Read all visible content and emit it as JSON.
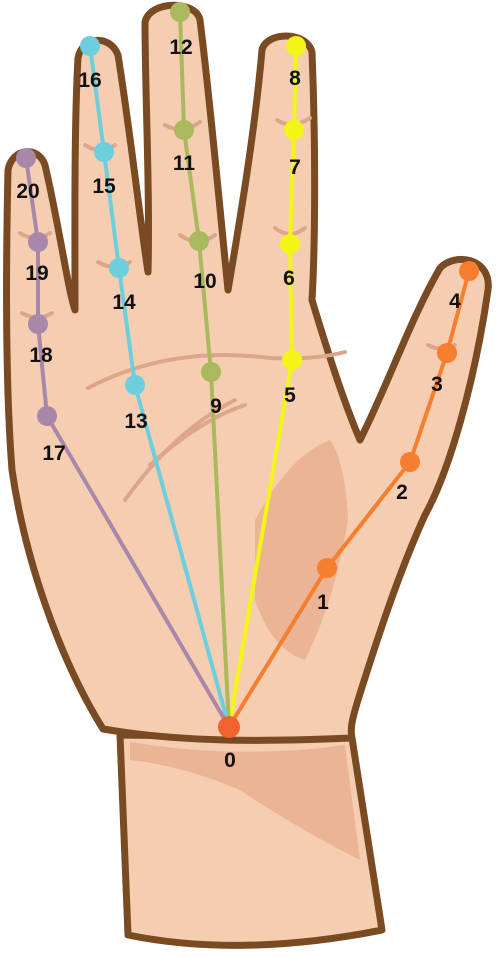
{
  "colors": {
    "skin": "#F5CDB0",
    "skin_shade": "#EBB495",
    "outline": "#7A4A23",
    "crease": "#DDA58A",
    "thumb": "#F57E2F",
    "index": "#F2F516",
    "middle": "#ABB95E",
    "ring": "#6DCFDE",
    "pinky": "#A888A8",
    "wrist_point": "#F2622E"
  },
  "landmarks": [
    {
      "id": 0,
      "label": "0",
      "finger": "wrist"
    },
    {
      "id": 1,
      "label": "1",
      "finger": "thumb"
    },
    {
      "id": 2,
      "label": "2",
      "finger": "thumb"
    },
    {
      "id": 3,
      "label": "3",
      "finger": "thumb"
    },
    {
      "id": 4,
      "label": "4",
      "finger": "thumb"
    },
    {
      "id": 5,
      "label": "5",
      "finger": "index"
    },
    {
      "id": 6,
      "label": "6",
      "finger": "index"
    },
    {
      "id": 7,
      "label": "7",
      "finger": "index"
    },
    {
      "id": 8,
      "label": "8",
      "finger": "index"
    },
    {
      "id": 9,
      "label": "9",
      "finger": "middle"
    },
    {
      "id": 10,
      "label": "10",
      "finger": "middle"
    },
    {
      "id": 11,
      "label": "11",
      "finger": "middle"
    },
    {
      "id": 12,
      "label": "12",
      "finger": "middle"
    },
    {
      "id": 13,
      "label": "13",
      "finger": "ring"
    },
    {
      "id": 14,
      "label": "14",
      "finger": "ring"
    },
    {
      "id": 15,
      "label": "15",
      "finger": "ring"
    },
    {
      "id": 16,
      "label": "16",
      "finger": "ring"
    },
    {
      "id": 17,
      "label": "17",
      "finger": "pinky"
    },
    {
      "id": 18,
      "label": "18",
      "finger": "pinky"
    },
    {
      "id": 19,
      "label": "19",
      "finger": "pinky"
    },
    {
      "id": 20,
      "label": "20",
      "finger": "pinky"
    }
  ],
  "connections": [
    {
      "from": 0,
      "to": 1,
      "finger": "thumb"
    },
    {
      "from": 1,
      "to": 2,
      "finger": "thumb"
    },
    {
      "from": 2,
      "to": 3,
      "finger": "thumb"
    },
    {
      "from": 3,
      "to": 4,
      "finger": "thumb"
    },
    {
      "from": 0,
      "to": 5,
      "finger": "index"
    },
    {
      "from": 5,
      "to": 6,
      "finger": "index"
    },
    {
      "from": 6,
      "to": 7,
      "finger": "index"
    },
    {
      "from": 7,
      "to": 8,
      "finger": "index"
    },
    {
      "from": 0,
      "to": 9,
      "finger": "middle"
    },
    {
      "from": 9,
      "to": 10,
      "finger": "middle"
    },
    {
      "from": 10,
      "to": 11,
      "finger": "middle"
    },
    {
      "from": 11,
      "to": 12,
      "finger": "middle"
    },
    {
      "from": 0,
      "to": 13,
      "finger": "ring"
    },
    {
      "from": 13,
      "to": 14,
      "finger": "ring"
    },
    {
      "from": 14,
      "to": 15,
      "finger": "ring"
    },
    {
      "from": 15,
      "to": 16,
      "finger": "ring"
    },
    {
      "from": 0,
      "to": 17,
      "finger": "pinky"
    },
    {
      "from": 17,
      "to": 18,
      "finger": "pinky"
    },
    {
      "from": 18,
      "to": 19,
      "finger": "pinky"
    },
    {
      "from": 19,
      "to": 20,
      "finger": "pinky"
    }
  ]
}
